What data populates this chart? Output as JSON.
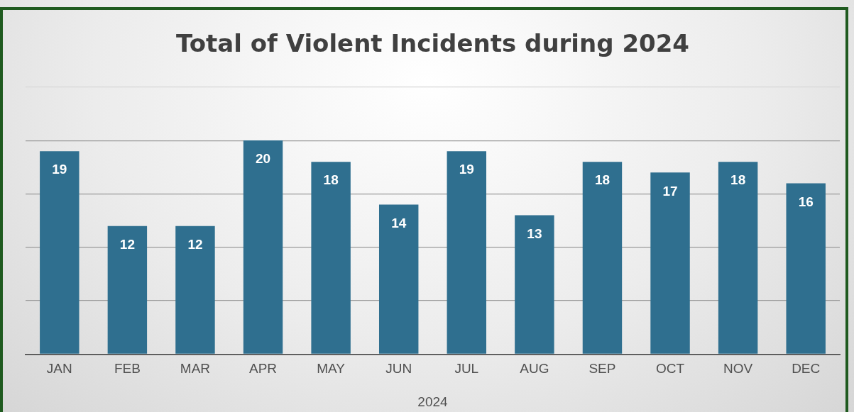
{
  "chart_data": {
    "type": "bar",
    "title": "Total of Violent Incidents during 2024",
    "xlabel": "2024",
    "categories": [
      "JAN",
      "FEB",
      "MAR",
      "APR",
      "MAY",
      "JUN",
      "JUL",
      "AUG",
      "SEP",
      "OCT",
      "NOV",
      "DEC"
    ],
    "values": [
      19,
      12,
      12,
      20,
      18,
      14,
      19,
      13,
      18,
      17,
      18,
      16
    ],
    "color": "#2f6f8f",
    "ylim": [
      0,
      25
    ],
    "yticks": [
      {
        "value": 0,
        "label": null
      },
      {
        "value": 5,
        "label": null
      },
      {
        "value": 10,
        "label": null
      },
      {
        "value": 15,
        "label": null
      },
      {
        "value": 20,
        "label": null
      },
      {
        "value": 25,
        "label": null
      }
    ],
    "grid": "y",
    "tick_labels": "x",
    "data_labels": true,
    "legend": false
  }
}
